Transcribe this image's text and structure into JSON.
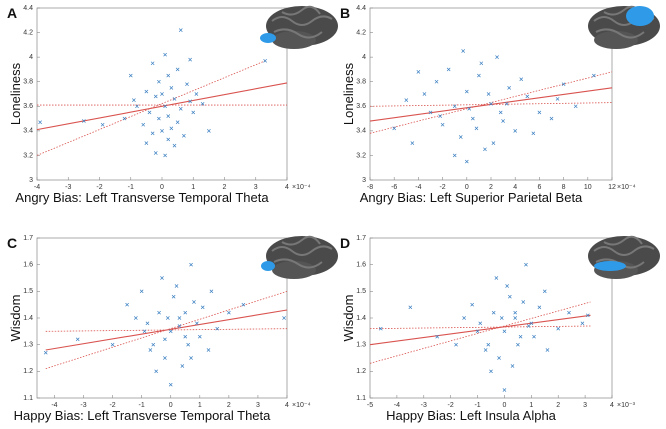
{
  "chart_data": [
    {
      "type": "scatter",
      "panel": "A",
      "ylabel": "Loneliness",
      "xlabel": "Angry Bias: Left Transverse Temporal Theta",
      "x_exponent": "×10⁻⁴",
      "xlim": [
        -4,
        4
      ],
      "xticks": [
        -4,
        -3,
        -2,
        -1,
        0,
        1,
        2,
        3,
        4
      ],
      "ylim": [
        3,
        4.4
      ],
      "yticks": [
        3,
        3.2,
        3.4,
        3.6,
        3.8,
        4,
        4.2,
        4.4
      ],
      "color": "#3a7fc1",
      "x": [
        0.1,
        0.6,
        -0.3,
        0.5,
        0.2,
        -0.1,
        0.3,
        -0.5,
        0.8,
        0,
        -0.2,
        0.4,
        0.9,
        -0.8,
        0.1,
        0.6,
        -0.4,
        0.2,
        1.0,
        -0.1,
        0.5,
        -0.6,
        0.3,
        0,
        -0.3,
        0.7,
        0.2,
        -0.5,
        0.4,
        -0.2,
        0.1,
        -1.2,
        -1.9,
        -2.5,
        -3.9,
        1.3,
        1.5,
        -1.0,
        3.3,
        0.9,
        -0.9,
        1.1
      ],
      "values": [
        4.02,
        4.22,
        3.95,
        3.9,
        3.85,
        3.8,
        3.75,
        3.72,
        3.78,
        3.7,
        3.68,
        3.66,
        3.64,
        3.6,
        3.6,
        3.58,
        3.55,
        3.52,
        3.55,
        3.5,
        3.47,
        3.45,
        3.42,
        3.4,
        3.38,
        3.36,
        3.33,
        3.3,
        3.28,
        3.22,
        3.2,
        3.5,
        3.45,
        3.48,
        3.47,
        3.62,
        3.4,
        3.85,
        3.97,
        3.98,
        3.65,
        3.7
      ],
      "fit_line": {
        "x": [
          -4,
          4
        ],
        "values": [
          3.41,
          3.79
        ],
        "color": "#d9534f"
      },
      "ci_lines": [
        {
          "x": [
            -4,
            3.3
          ],
          "values": [
            3.2,
            3.97
          ]
        },
        {
          "x": [
            -4,
            4
          ],
          "values": [
            3.61,
            3.61
          ]
        }
      ]
    },
    {
      "type": "scatter",
      "panel": "B",
      "ylabel": "Loneliness",
      "xlabel": "Angry Bias: Left Superior Parietal Beta",
      "x_exponent": "×10⁻⁴",
      "xlim": [
        -8,
        12
      ],
      "xticks": [
        -8,
        -6,
        -4,
        -2,
        0,
        2,
        4,
        6,
        8,
        10,
        12
      ],
      "ylim": [
        3,
        4.4
      ],
      "yticks": [
        3,
        3.2,
        3.4,
        3.6,
        3.8,
        4,
        4.2,
        4.4
      ],
      "color": "#3a7fc1",
      "x": [
        -6,
        -5,
        -4.5,
        -3,
        -2.5,
        -2,
        -1.5,
        -1,
        -0.5,
        0,
        0.5,
        1,
        1.5,
        2,
        2.5,
        3,
        3.5,
        4,
        5,
        6,
        7,
        8,
        9,
        10.5,
        -3.5,
        -1,
        0.2,
        1.2,
        2.2,
        3.3,
        -2.2,
        -0.3,
        0.8,
        1.8,
        4.5,
        5.5,
        -4,
        7.5,
        2.8,
        0
      ],
      "values": [
        3.42,
        3.65,
        3.3,
        3.55,
        3.8,
        3.45,
        3.9,
        3.6,
        3.35,
        3.72,
        3.5,
        3.85,
        3.25,
        3.62,
        4.0,
        3.48,
        3.75,
        3.4,
        3.68,
        3.55,
        3.5,
        3.78,
        3.6,
        3.85,
        3.7,
        3.2,
        3.58,
        3.95,
        3.3,
        3.62,
        3.52,
        4.05,
        3.42,
        3.7,
        3.82,
        3.38,
        3.88,
        3.66,
        3.55,
        3.15
      ],
      "fit_line": {
        "x": [
          -8,
          12
        ],
        "values": [
          3.48,
          3.75
        ],
        "color": "#d9534f"
      },
      "ci_lines": [
        {
          "x": [
            -8,
            12
          ],
          "values": [
            3.38,
            3.88
          ]
        },
        {
          "x": [
            -8,
            12
          ],
          "values": [
            3.6,
            3.63
          ]
        }
      ]
    },
    {
      "type": "scatter",
      "panel": "C",
      "ylabel": "Wisdom",
      "xlabel": "Happy Bias: Left Transverse Temporal Theta",
      "x_exponent": "×10⁻⁴",
      "xlim": [
        -4.6,
        4
      ],
      "xticks": [
        -4,
        -3,
        -2,
        -1,
        0,
        1,
        2,
        3,
        4
      ],
      "ylim": [
        1.1,
        1.7
      ],
      "yticks": [
        1.1,
        1.2,
        1.3,
        1.4,
        1.5,
        1.6,
        1.7
      ],
      "color": "#3a7fc1",
      "x": [
        -4.3,
        -3.2,
        -2.0,
        -1.5,
        -1.0,
        -0.8,
        -0.6,
        -0.4,
        -0.2,
        0,
        0.1,
        0.3,
        0.5,
        0.7,
        0.9,
        1.1,
        1.3,
        1.6,
        2.0,
        3.9,
        -0.5,
        0.2,
        0.6,
        -0.1,
        0.4,
        0.8,
        -0.9,
        1.0,
        -0.3,
        0.0,
        0.5,
        -0.7,
        1.4,
        0.3,
        -1.2,
        0.7,
        2.5,
        -0.2
      ],
      "values": [
        1.27,
        1.32,
        1.3,
        1.45,
        1.5,
        1.38,
        1.3,
        1.42,
        1.25,
        1.35,
        1.48,
        1.4,
        1.33,
        1.6,
        1.38,
        1.44,
        1.28,
        1.36,
        1.42,
        1.4,
        1.2,
        1.52,
        1.3,
        1.4,
        1.22,
        1.46,
        1.35,
        1.33,
        1.55,
        1.15,
        1.42,
        1.28,
        1.5,
        1.37,
        1.4,
        1.25,
        1.45,
        1.32
      ],
      "fit_line": {
        "x": [
          -4.3,
          4
        ],
        "values": [
          1.28,
          1.43
        ],
        "color": "#d9534f"
      },
      "ci_lines": [
        {
          "x": [
            -4.3,
            4
          ],
          "values": [
            1.21,
            1.5
          ]
        },
        {
          "x": [
            -4.3,
            4
          ],
          "values": [
            1.35,
            1.36
          ]
        }
      ]
    },
    {
      "type": "scatter",
      "panel": "D",
      "ylabel": "Wisdom",
      "xlabel": "Happy Bias: Left Insula Alpha",
      "x_exponent": "×10⁻³",
      "xlim": [
        -5,
        4
      ],
      "xticks": [
        -5,
        -4,
        -3,
        -2,
        -1,
        0,
        1,
        2,
        3,
        4
      ],
      "ylim": [
        1.1,
        1.7
      ],
      "yticks": [
        1.1,
        1.2,
        1.3,
        1.4,
        1.5,
        1.6,
        1.7
      ],
      "color": "#3a7fc1",
      "x": [
        -4.6,
        -3.5,
        -2.5,
        -1.8,
        -1.2,
        -0.9,
        -0.6,
        -0.4,
        -0.2,
        0,
        0.2,
        0.4,
        0.6,
        0.8,
        1.0,
        1.3,
        1.6,
        2.0,
        2.4,
        2.9,
        -0.5,
        0.1,
        0.5,
        -0.1,
        0.3,
        0.7,
        -1.0,
        1.1,
        -0.3,
        0.0,
        0.4,
        -0.7,
        1.5,
        0.9,
        -1.5,
        3.1
      ],
      "values": [
        1.36,
        1.44,
        1.33,
        1.3,
        1.45,
        1.38,
        1.3,
        1.42,
        1.25,
        1.35,
        1.48,
        1.4,
        1.33,
        1.6,
        1.38,
        1.44,
        1.28,
        1.36,
        1.42,
        1.38,
        1.2,
        1.52,
        1.3,
        1.4,
        1.22,
        1.46,
        1.35,
        1.33,
        1.55,
        1.13,
        1.42,
        1.28,
        1.5,
        1.37,
        1.4,
        1.41
      ],
      "fit_line": {
        "x": [
          -5,
          3.2
        ],
        "values": [
          1.3,
          1.41
        ],
        "color": "#d9534f"
      },
      "ci_lines": [
        {
          "x": [
            -5,
            3.2
          ],
          "values": [
            1.23,
            1.46
          ]
        },
        {
          "x": [
            -5,
            3.2
          ],
          "values": [
            1.36,
            1.37
          ]
        }
      ]
    }
  ]
}
